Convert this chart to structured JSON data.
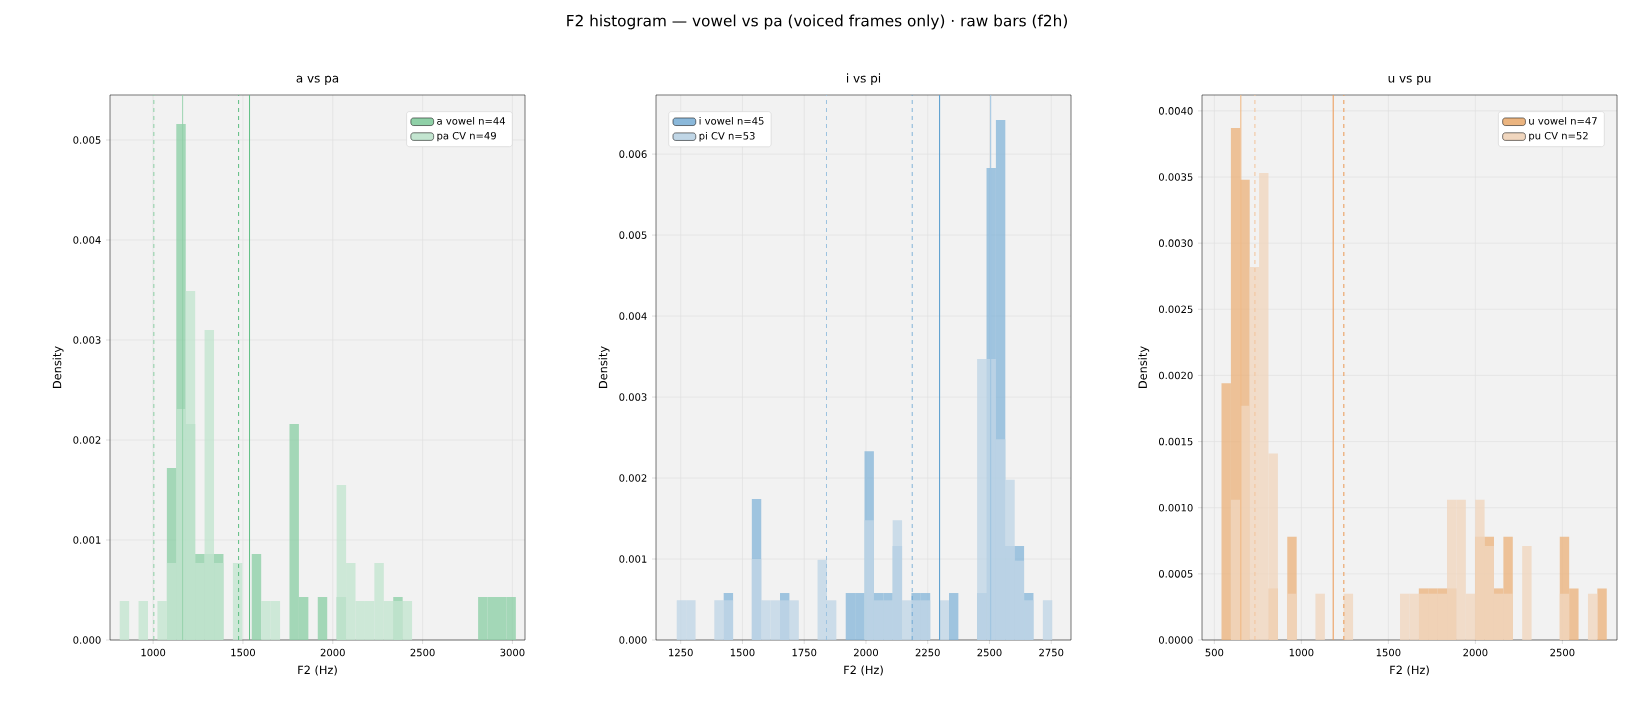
{
  "chart_data": [
    {
      "type": "histogram",
      "title": "a vs pa",
      "xlabel": "F2 (Hz)",
      "ylabel": "Density",
      "annotations": [
        "F2 histogram — vowel vs pa (voiced frames only) · raw bars (f2h)"
      ],
      "xlim": [
        760,
        3070
      ],
      "ylim": [
        0,
        0.00545
      ],
      "xticks": [
        1000,
        1500,
        2000,
        2500,
        3000
      ],
      "yticks": [
        {
          "value": 0,
          "label": "0.000"
        },
        {
          "value": 0.001,
          "label": "0.001"
        },
        {
          "value": 0.002,
          "label": "0.002"
        },
        {
          "value": 0.003,
          "label": "0.003"
        },
        {
          "value": 0.004,
          "label": "0.004"
        },
        {
          "value": 0.005,
          "label": "0.005"
        }
      ],
      "grid": true,
      "legend": "top right",
      "bins": [
        814,
        866.5,
        919,
        971.5,
        1024,
        1076.5,
        1129,
        1181.5,
        1234,
        1286.5,
        1339,
        1391.5,
        1444,
        1496.5,
        1549,
        1601.5,
        1654,
        1706.5,
        1759,
        1811.5,
        1864,
        1916.5,
        1969,
        2021.5,
        2074,
        2126.5,
        2179,
        2231.5,
        2284,
        2336.5,
        2389,
        2441.5,
        2494,
        2546.5,
        2599,
        2651.5,
        2704,
        2756.5,
        2809,
        2861.5,
        2914,
        2966.5,
        3019
      ],
      "series": [
        {
          "name": "a vowel  n=44",
          "color": "#8fd0a7",
          "values": [
            0,
            0,
            0,
            0,
            0,
            0.00172,
            0.00516,
            0.00216,
            0.00086,
            0.00086,
            0.00086,
            0,
            0,
            0,
            0.00086,
            0,
            0,
            0,
            0.00216,
            0.00043,
            0,
            0.00043,
            0,
            0.00043,
            0,
            0,
            0,
            0,
            0,
            0.00043,
            0,
            0,
            0,
            0,
            0,
            0,
            0,
            0,
            0.00043,
            0.00043,
            0.00043,
            0.00043
          ]
        },
        {
          "name": "pa CV  n=49",
          "color": "#c3e5d0",
          "values": [
            0.00039,
            0,
            0.00039,
            0,
            0.00039,
            0.00077,
            0.00231,
            0.00349,
            0.00077,
            0.0031,
            0.00077,
            0,
            0.00077,
            0,
            0,
            0.00039,
            0.00039,
            0,
            0,
            0,
            0,
            0,
            0,
            0.00155,
            0.00077,
            0.00039,
            0.00039,
            0.00077,
            0.00039,
            0.00039,
            0.00039,
            0,
            0,
            0,
            0,
            0,
            0,
            0,
            0,
            0,
            0,
            0
          ]
        }
      ],
      "ref_lines": [
        {
          "axis": "x",
          "value": 1004,
          "color": "#8fd0a7",
          "line_style": "dashed"
        },
        {
          "axis": "x",
          "value": 1165,
          "color": "#8fd0a7",
          "line_style": "solid"
        },
        {
          "axis": "x",
          "value": 1476,
          "color": "#5cbd80",
          "line_style": "dashed"
        },
        {
          "axis": "x",
          "value": 1537,
          "color": "#5cbd80",
          "line_style": "solid"
        }
      ]
    },
    {
      "type": "histogram",
      "title": "i vs pi",
      "xlabel": "F2 (Hz)",
      "ylabel": "Density",
      "xlim": [
        1150,
        2830
      ],
      "ylim": [
        0,
        0.00673
      ],
      "xticks": [
        1250,
        1500,
        1750,
        2000,
        2250,
        2500,
        2750
      ],
      "yticks": [
        {
          "value": 0,
          "label": "0.000"
        },
        {
          "value": 0.001,
          "label": "0.001"
        },
        {
          "value": 0.002,
          "label": "0.002"
        },
        {
          "value": 0.003,
          "label": "0.003"
        },
        {
          "value": 0.004,
          "label": "0.004"
        },
        {
          "value": 0.005,
          "label": "0.005"
        },
        {
          "value": 0.006,
          "label": "0.006"
        }
      ],
      "grid": true,
      "legend": "top left",
      "bins": [
        1234,
        1272,
        1310,
        1348,
        1386,
        1424,
        1462,
        1500,
        1538,
        1576,
        1614,
        1652,
        1690,
        1728,
        1766,
        1804,
        1842,
        1880,
        1918,
        1956,
        1994,
        2032,
        2070,
        2108,
        2146,
        2184,
        2222,
        2260,
        2298,
        2336,
        2374,
        2412,
        2450,
        2488,
        2526,
        2564,
        2602,
        2640,
        2678,
        2716,
        2754
      ],
      "series": [
        {
          "name": "i vowel  n=45",
          "color": "#8ab8da",
          "values": [
            0,
            0,
            0,
            0,
            0,
            0.00058,
            0,
            0,
            0.00174,
            0,
            0,
            0.00058,
            0,
            0,
            0,
            0,
            0,
            0,
            0.00058,
            0.00058,
            0.00233,
            0.00058,
            0.00058,
            0.00116,
            0,
            0.00058,
            0.00058,
            0,
            0,
            0.00058,
            0,
            0,
            0.00058,
            0.00583,
            0.00642,
            0.00116,
            0.00116,
            0.00058,
            0,
            0
          ]
        },
        {
          "name": "pi CV  n=53",
          "color": "#c0d6e6",
          "values": [
            0.00049,
            0.00049,
            0,
            0,
            0.00049,
            0.00049,
            0,
            0,
            0.001,
            0.00049,
            0.00049,
            0.00049,
            0.00049,
            0,
            0,
            0.00099,
            0.00049,
            0,
            0,
            0,
            0.00148,
            0.00049,
            0.00049,
            0.00148,
            0.00049,
            0.00049,
            0.00049,
            0,
            0.00049,
            0,
            0,
            0,
            0.00347,
            0.00347,
            0.00248,
            0.00198,
            0.00098,
            0.00049,
            0,
            0.00049
          ]
        }
      ],
      "ref_lines": [
        {
          "axis": "x",
          "value": 1840,
          "color": "#9dc3e0",
          "line_style": "dashed"
        },
        {
          "axis": "x",
          "value": 2187,
          "color": "#5a9ecf",
          "line_style": "dashed"
        },
        {
          "axis": "x",
          "value": 2298,
          "color": "#5a9ecf",
          "line_style": "solid"
        },
        {
          "axis": "x",
          "value": 2505,
          "color": "#9dc3e0",
          "line_style": "solid"
        }
      ]
    },
    {
      "type": "histogram",
      "title": "u vs pu",
      "xlabel": "F2 (Hz)",
      "ylabel": "Density",
      "xlim": [
        429,
        2814
      ],
      "ylim": [
        0,
        0.00412
      ],
      "xticks": [
        500,
        1000,
        1500,
        2000,
        2500
      ],
      "yticks": [
        {
          "value": 0,
          "label": "0.0000"
        },
        {
          "value": 0.0005,
          "label": "0.0005"
        },
        {
          "value": 0.001,
          "label": "0.0010"
        },
        {
          "value": 0.0015,
          "label": "0.0015"
        },
        {
          "value": 0.002,
          "label": "0.0020"
        },
        {
          "value": 0.0025,
          "label": "0.0025"
        },
        {
          "value": 0.003,
          "label": "0.0030"
        },
        {
          "value": 0.0035,
          "label": "0.0035"
        },
        {
          "value": 0.004,
          "label": "0.0040"
        }
      ],
      "grid": true,
      "legend": "top right",
      "bins": [
        541,
        595,
        649,
        703,
        757,
        811,
        865,
        919,
        973,
        1027,
        1081,
        1135,
        1189,
        1243,
        1297,
        1351,
        1405,
        1459,
        1513,
        1567,
        1621,
        1675,
        1729,
        1783,
        1837,
        1891,
        1945,
        1999,
        2053,
        2107,
        2161,
        2215,
        2269,
        2323,
        2377,
        2431,
        2485,
        2539,
        2593,
        2647,
        2701,
        2755
      ],
      "series": [
        {
          "name": "u vowel  n=47",
          "color": "#ebb47f",
          "values": [
            0.00194,
            0.00387,
            0.00348,
            0,
            0,
            0.00039,
            0,
            0.00078,
            0,
            0,
            0,
            0,
            0,
            0,
            0,
            0,
            0,
            0,
            0,
            0,
            0,
            0.00039,
            0.00039,
            0.00039,
            0.00039,
            0,
            0,
            0.00078,
            0.00078,
            0.00039,
            0.00078,
            0,
            0,
            0,
            0,
            0,
            0.00078,
            0.00039,
            0,
            0,
            0.00039
          ]
        },
        {
          "name": "pu CV  n=52",
          "color": "#f0d6be",
          "values": [
            0,
            0.00106,
            0.00177,
            0.00282,
            0.00353,
            0.00141,
            0,
            0.00035,
            0,
            0,
            0.00035,
            0,
            0,
            0.00035,
            0,
            0,
            0,
            0,
            0,
            0.00035,
            0.00035,
            0.00035,
            0.00035,
            0.00035,
            0.00106,
            0.00106,
            0.00035,
            0.00106,
            0.00071,
            0.00035,
            0.00035,
            0,
            0.00071,
            0,
            0,
            0,
            0.00035,
            0,
            0,
            0.00035,
            0
          ]
        }
      ],
      "ref_lines": [
        {
          "axis": "x",
          "value": 652,
          "color": "#f0b884",
          "line_style": "solid"
        },
        {
          "axis": "x",
          "value": 733,
          "color": "#f3c59c",
          "line_style": "dashed"
        },
        {
          "axis": "x",
          "value": 1183,
          "color": "#ec9d5c",
          "line_style": "solid"
        },
        {
          "axis": "x",
          "value": 1244,
          "color": "#ec9d5c",
          "line_style": "dashed"
        }
      ]
    }
  ]
}
